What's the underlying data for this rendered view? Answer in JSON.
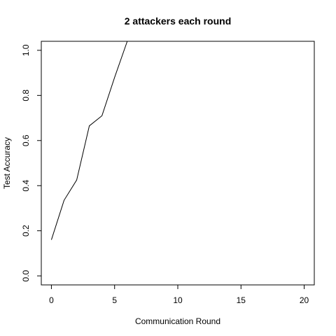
{
  "chart_data": {
    "type": "line",
    "title": "2 attackers each round",
    "xlabel": "Communication Round",
    "ylabel": "Test Accuracy",
    "xlim": [
      -0.8,
      20.8
    ],
    "ylim": [
      -0.04,
      1.04
    ],
    "x_ticks": [
      0,
      5,
      10,
      15,
      20
    ],
    "x_tick_labels": [
      "0",
      "5",
      "10",
      "15",
      "20"
    ],
    "y_ticks": [
      0.0,
      0.2,
      0.4,
      0.6,
      0.8,
      1.0
    ],
    "y_tick_labels": [
      "0.0",
      "0.2",
      "0.4",
      "0.6",
      "0.8",
      "1.0"
    ],
    "grid": false,
    "series": [
      {
        "x": [
          0,
          1,
          2,
          3,
          4,
          5,
          6
        ],
        "y": [
          0.16,
          0.335,
          0.425,
          0.665,
          0.71,
          0.88,
          1.04
        ]
      }
    ]
  }
}
